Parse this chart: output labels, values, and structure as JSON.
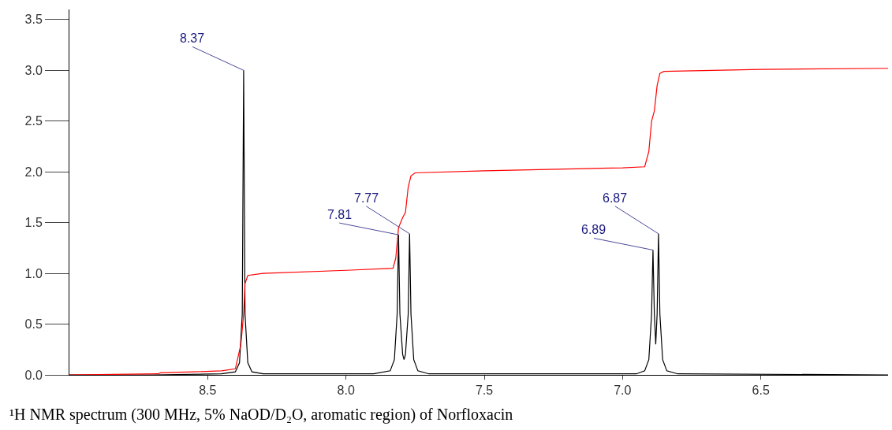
{
  "chart_data": {
    "type": "line",
    "xlim": [
      9.0,
      6.04
    ],
    "xticks": [
      8.5,
      {
        "value": 8.0,
        "label": "8.0"
      },
      7.5,
      {
        "value": 7.0,
        "label": "7.0"
      },
      6.5
    ],
    "ylim": [
      0,
      3.6
    ],
    "yticks": [
      {
        "value": 0,
        "label": "0.0"
      },
      0.5,
      {
        "value": 1.0,
        "label": "1.0"
      },
      1.5,
      {
        "value": 2.0,
        "label": "2.0"
      },
      2.5,
      {
        "value": 3.0,
        "label": "3.0"
      },
      3.5
    ],
    "marker": "none",
    "line_style": "solid",
    "series": [
      {
        "color": "#000000",
        "x": [
          9.0,
          8.7,
          8.45,
          8.4,
          8.385,
          8.375,
          8.37,
          8.365,
          8.355,
          8.34,
          8.3,
          7.9,
          7.84,
          7.825,
          7.815,
          7.81,
          7.805,
          7.795,
          7.79,
          7.785,
          7.775,
          7.77,
          7.765,
          7.755,
          7.74,
          7.7,
          6.95,
          6.92,
          6.905,
          6.895,
          6.89,
          6.885,
          6.88,
          6.875,
          6.87,
          6.865,
          6.855,
          6.84,
          6.8,
          6.04
        ],
        "values": [
          0,
          0,
          0.01,
          0.03,
          0.12,
          0.6,
          3.0,
          0.6,
          0.12,
          0.03,
          0.01,
          0.01,
          0.04,
          0.15,
          0.6,
          1.38,
          0.6,
          0.2,
          0.15,
          0.2,
          0.6,
          1.39,
          0.6,
          0.15,
          0.04,
          0.01,
          0.01,
          0.04,
          0.15,
          0.6,
          1.23,
          0.6,
          0.3,
          0.6,
          1.39,
          0.6,
          0.15,
          0.04,
          0.01,
          0
        ]
      },
      {
        "color": "#ff0000",
        "x": [
          9.0,
          8.68,
          8.67,
          8.55,
          8.45,
          8.4,
          8.38,
          8.37,
          8.365,
          8.355,
          8.3,
          8.0,
          7.83,
          7.82,
          7.81,
          7.795,
          7.785,
          7.775,
          7.765,
          7.75,
          7.5,
          7.0,
          6.92,
          6.905,
          6.895,
          6.885,
          6.875,
          6.865,
          6.85,
          6.5,
          6.04
        ],
        "values": [
          0,
          0.01,
          0.02,
          0.03,
          0.04,
          0.06,
          0.3,
          0.6,
          0.9,
          0.98,
          1.0,
          1.03,
          1.05,
          1.15,
          1.45,
          1.55,
          1.6,
          1.85,
          1.96,
          1.99,
          2.01,
          2.04,
          2.05,
          2.2,
          2.5,
          2.6,
          2.85,
          2.97,
          2.99,
          3.01,
          3.02
        ]
      }
    ],
    "annotations": [
      {
        "text": "8.37",
        "x": 8.37,
        "y": 3.0
      },
      {
        "text": "7.77",
        "x": 7.77,
        "y": 1.39
      },
      {
        "text": "7.81",
        "x": 7.81,
        "y": 1.38
      },
      {
        "text": "6.87",
        "x": 6.87,
        "y": 1.39
      },
      {
        "text": "6.89",
        "x": 6.89,
        "y": 1.23
      },
      "¹H NMR spectrum (300 MHz, 5% NaOD/D₂O, aromatic region) of Norfloxacin"
    ]
  }
}
